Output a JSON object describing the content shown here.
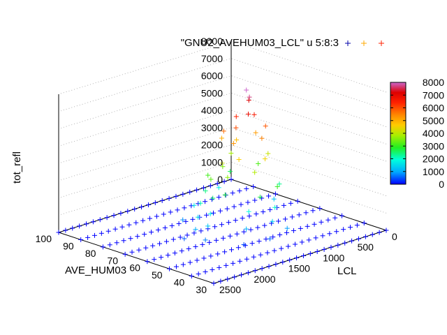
{
  "chart_data": {
    "type": "scatter",
    "plot_style": "3d-scatter-plus-markers",
    "legend": {
      "text": "\"GNU2_AVEHUM03_LCL\" u 5:8:3",
      "placement": "top-right"
    },
    "axes": {
      "x": {
        "label": "LCL",
        "range": [
          0,
          2500
        ],
        "ticks": [
          "0",
          "500",
          "1000",
          "1500",
          "2000",
          "2500"
        ]
      },
      "y": {
        "label": "AVE_HUM03",
        "range": [
          30,
          100
        ],
        "ticks": [
          "30",
          "40",
          "50",
          "60",
          "70",
          "80",
          "90",
          "100"
        ]
      },
      "z": {
        "label": "tot_refl",
        "range": [
          0,
          8000
        ],
        "ticks": [
          "0",
          "1000",
          "2000",
          "3000",
          "4000",
          "5000",
          "6000",
          "7000",
          "8000"
        ]
      }
    },
    "colorbar": {
      "range": [
        0,
        8000
      ],
      "ticks": [
        "0",
        "1000",
        "2000",
        "3000",
        "4000",
        "5000",
        "6000",
        "7000",
        "8000"
      ],
      "palette": [
        "#0000ff",
        "#00aaff",
        "#00ffdd",
        "#22ee22",
        "#aaee00",
        "#ffcc00",
        "#ff8800",
        "#ff2200",
        "#dd0000",
        "#cc66cc"
      ]
    },
    "grid": true,
    "lcl_values": [
      0,
      100,
      200,
      300,
      400,
      500,
      600,
      700,
      800,
      900,
      1000,
      1100,
      1200,
      1300,
      1400,
      1500,
      1600,
      1700,
      1800,
      1900,
      2000,
      2100,
      2200,
      2300,
      2400,
      2500
    ],
    "hum_values": [
      30,
      40,
      50,
      60,
      70,
      80,
      90,
      100
    ],
    "peak_points": [
      {
        "x": 1000,
        "y": 62,
        "z": 8000
      },
      {
        "x": 1020,
        "y": 60,
        "z": 7700
      },
      {
        "x": 900,
        "y": 64,
        "z": 7200
      },
      {
        "x": 1100,
        "y": 58,
        "z": 6900
      },
      {
        "x": 950,
        "y": 60,
        "z": 6600
      },
      {
        "x": 1050,
        "y": 65,
        "z": 6400
      },
      {
        "x": 1150,
        "y": 62,
        "z": 6000
      },
      {
        "x": 850,
        "y": 58,
        "z": 5900
      },
      {
        "x": 1200,
        "y": 66,
        "z": 5700
      },
      {
        "x": 1000,
        "y": 55,
        "z": 5500
      },
      {
        "x": 1250,
        "y": 60,
        "z": 5300
      },
      {
        "x": 800,
        "y": 64,
        "z": 5200
      },
      {
        "x": 1100,
        "y": 70,
        "z": 5000
      },
      {
        "x": 950,
        "y": 68,
        "z": 4800
      },
      {
        "x": 1300,
        "y": 56,
        "z": 4600
      },
      {
        "x": 1050,
        "y": 52,
        "z": 4500
      },
      {
        "x": 1350,
        "y": 62,
        "z": 4200
      },
      {
        "x": 750,
        "y": 60,
        "z": 4100
      },
      {
        "x": 1200,
        "y": 52,
        "z": 3900
      },
      {
        "x": 900,
        "y": 72,
        "z": 3800
      },
      {
        "x": 1400,
        "y": 58,
        "z": 3600
      },
      {
        "x": 1150,
        "y": 68,
        "z": 3500
      },
      {
        "x": 1450,
        "y": 64,
        "z": 3300
      },
      {
        "x": 700,
        "y": 66,
        "z": 3200
      },
      {
        "x": 1300,
        "y": 70,
        "z": 3100
      },
      {
        "x": 1000,
        "y": 48,
        "z": 3000
      },
      {
        "x": 1500,
        "y": 56,
        "z": 2800
      },
      {
        "x": 1250,
        "y": 48,
        "z": 2700
      },
      {
        "x": 850,
        "y": 74,
        "z": 2600
      },
      {
        "x": 1550,
        "y": 60,
        "z": 2500
      },
      {
        "x": 1400,
        "y": 68,
        "z": 2400
      },
      {
        "x": 650,
        "y": 58,
        "z": 2300
      },
      {
        "x": 1600,
        "y": 64,
        "z": 2100
      },
      {
        "x": 1100,
        "y": 46,
        "z": 2000
      },
      {
        "x": 1350,
        "y": 50,
        "z": 1900
      },
      {
        "x": 1650,
        "y": 58,
        "z": 1800
      },
      {
        "x": 950,
        "y": 76,
        "z": 1700
      },
      {
        "x": 1500,
        "y": 70,
        "z": 1600
      },
      {
        "x": 1700,
        "y": 62,
        "z": 1500
      },
      {
        "x": 1200,
        "y": 44,
        "z": 1400
      },
      {
        "x": 1750,
        "y": 56,
        "z": 1300
      },
      {
        "x": 600,
        "y": 62,
        "z": 1200
      },
      {
        "x": 1450,
        "y": 48,
        "z": 1100
      },
      {
        "x": 1800,
        "y": 60,
        "z": 1000
      },
      {
        "x": 1050,
        "y": 42,
        "z": 900
      },
      {
        "x": 1600,
        "y": 72,
        "z": 800
      },
      {
        "x": 1850,
        "y": 54,
        "z": 700
      },
      {
        "x": 1300,
        "y": 42,
        "z": 600
      },
      {
        "x": 1900,
        "y": 62,
        "z": 500
      },
      {
        "x": 1550,
        "y": 46,
        "z": 400
      }
    ]
  }
}
